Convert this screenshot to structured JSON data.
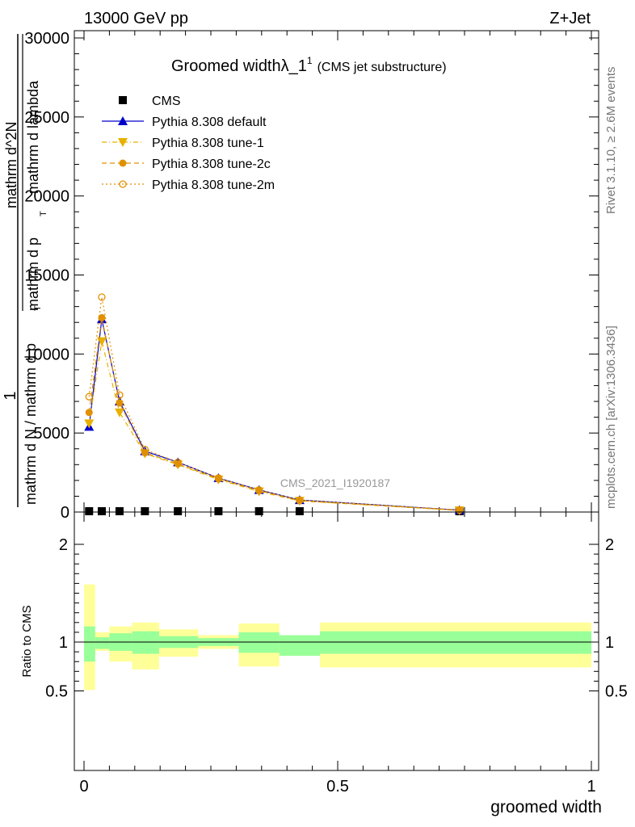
{
  "header": {
    "left": "13000 GeV pp",
    "right": "Z+Jet"
  },
  "side_text": {
    "rivet": "Rivet 3.1.10, ≥ 2.6M events",
    "mcplots": "mcplots.cern.ch [arXiv:1306.3436]"
  },
  "chart_data": [
    {
      "type": "line",
      "panel": "main",
      "title": "Groomed widthλ_1",
      "title_sup": "1",
      "subtitle": "(CMS jet substructure)",
      "ylabel_lines": [
        "1",
        "mathrm d N / mathrm d p",
        "T",
        "mathrm d^2N",
        "mathrm d p",
        "T",
        "mathrm d lambda"
      ],
      "xlim": [
        0,
        1
      ],
      "ylim": [
        0,
        30000
      ],
      "y_ticks": [
        0,
        5000,
        10000,
        15000,
        20000,
        25000,
        30000
      ],
      "y_tick_labels": [
        "0",
        "5000",
        "10000",
        "15000",
        "20000",
        "25000",
        "30000"
      ],
      "watermark": "CMS_2021_I1920187",
      "legend_position": "top-left",
      "series": [
        {
          "name": "CMS",
          "marker": "square",
          "color": "#000000",
          "x": [
            0.01,
            0.035,
            0.07,
            0.12,
            0.185,
            0.265,
            0.345,
            0.425,
            0.74
          ],
          "values": [
            0,
            0,
            0,
            0,
            0,
            0,
            0,
            0,
            0
          ]
        },
        {
          "name": "Pythia 8.308 default",
          "marker": "triangle-up",
          "line": "solid",
          "color": "#0000cc",
          "x": [
            0.01,
            0.035,
            0.07,
            0.12,
            0.185,
            0.265,
            0.345,
            0.425,
            0.74
          ],
          "values": [
            5400,
            12200,
            7000,
            3850,
            3150,
            2150,
            1400,
            760,
            120
          ]
        },
        {
          "name": "Pythia 8.308 tune-1",
          "marker": "triangle-down",
          "line": "dashdot",
          "color": "#e8b000",
          "x": [
            0.01,
            0.035,
            0.07,
            0.12,
            0.185,
            0.265,
            0.345,
            0.425,
            0.74
          ],
          "values": [
            5600,
            10800,
            6300,
            3700,
            3000,
            2050,
            1300,
            700,
            100
          ]
        },
        {
          "name": "Pythia 8.308 tune-2c",
          "marker": "circle-filled",
          "line": "dashed",
          "color": "#e09000",
          "x": [
            0.01,
            0.035,
            0.07,
            0.12,
            0.185,
            0.265,
            0.345,
            0.425,
            0.74
          ],
          "values": [
            6300,
            12300,
            6900,
            3750,
            3050,
            2100,
            1350,
            720,
            110
          ]
        },
        {
          "name": "Pythia 8.308 tune-2m",
          "marker": "circle-open",
          "line": "dotted",
          "color": "#e09000",
          "x": [
            0.01,
            0.035,
            0.07,
            0.12,
            0.185,
            0.265,
            0.345,
            0.425,
            0.74
          ],
          "values": [
            7300,
            13600,
            7400,
            3950,
            3150,
            2150,
            1400,
            760,
            120
          ]
        }
      ]
    },
    {
      "type": "area",
      "panel": "ratio",
      "ylabel": "Ratio to CMS",
      "xlabel": "groomed width",
      "xlim": [
        0,
        1
      ],
      "ylim": [
        0.35,
        2.25
      ],
      "x_ticks": [
        0,
        0.5,
        1
      ],
      "x_tick_labels": [
        "0",
        "0.5",
        "1"
      ],
      "y_ticks": [
        0.5,
        1,
        2
      ],
      "y_tick_labels": [
        "0.5",
        "1",
        "2"
      ],
      "reference_line": 1,
      "bins": [
        {
          "x_low": 0.0,
          "x_high": 0.022,
          "inner": [
            0.8,
            1.16
          ],
          "outer": [
            0.51,
            1.59
          ]
        },
        {
          "x_low": 0.022,
          "x_high": 0.05,
          "inner": [
            0.93,
            1.05
          ],
          "outer": [
            0.91,
            1.1
          ]
        },
        {
          "x_low": 0.05,
          "x_high": 0.095,
          "inner": [
            0.91,
            1.09
          ],
          "outer": [
            0.8,
            1.16
          ]
        },
        {
          "x_low": 0.095,
          "x_high": 0.148,
          "inner": [
            0.88,
            1.11
          ],
          "outer": [
            0.72,
            1.2
          ]
        },
        {
          "x_low": 0.148,
          "x_high": 0.225,
          "inner": [
            0.94,
            1.06
          ],
          "outer": [
            0.85,
            1.13
          ]
        },
        {
          "x_low": 0.225,
          "x_high": 0.305,
          "inner": [
            0.96,
            1.04
          ],
          "outer": [
            0.93,
            1.07
          ]
        },
        {
          "x_low": 0.305,
          "x_high": 0.385,
          "inner": [
            0.89,
            1.1
          ],
          "outer": [
            0.75,
            1.19
          ]
        },
        {
          "x_low": 0.385,
          "x_high": 0.465,
          "inner": [
            0.86,
            1.07
          ],
          "outer": [
            0.86,
            1.07
          ]
        },
        {
          "x_low": 0.465,
          "x_high": 1.0,
          "inner": [
            0.88,
            1.11
          ],
          "outer": [
            0.74,
            1.2
          ]
        }
      ]
    }
  ]
}
